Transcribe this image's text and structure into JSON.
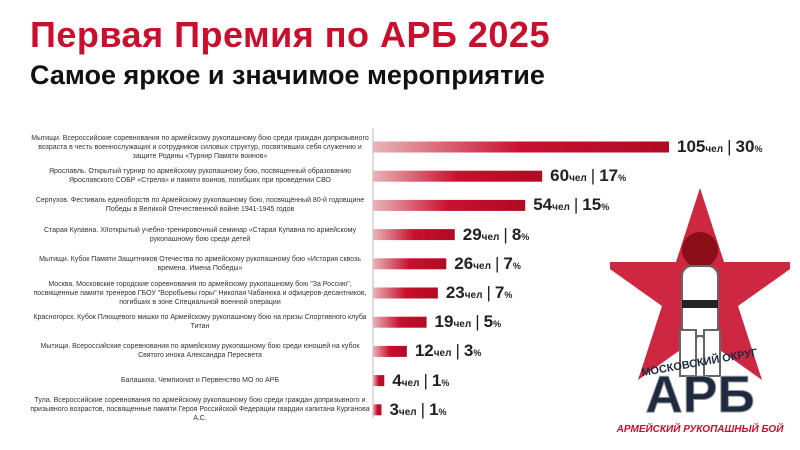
{
  "header": {
    "title": "Первая Премия по АРБ 2025",
    "subtitle": "Самое яркое и значимое мероприятие"
  },
  "chart_data": {
    "type": "bar",
    "orientation": "horizontal",
    "unit_label": "чел",
    "bar_color": "#c8102e",
    "categories": [
      "Мытищи. Всероссийские соревнования по армейскому рукопашному бою среди граждан допризывного возраста в честь военнослужащих и сотрудников силовых структур, посвятивших себя служению и защите Родины «Турнир Памяти воинов»",
      "Ярославль. Открытый турнир по армейскому рукопашному бою, посвященный образованию Ярославского СОБР «Стрела» и памяти воинов, погибших при проведении СВО",
      "Серпухов. Фестиваль единоборств по Армейскому рукопашному бою, посвящённый 80-й годовщине Победы в Великой Отечественной войне 1941-1945 годов",
      "Старая Купавна. XIIоткрытый учебно-тренировочный семинар «Старая Купавна по армейскому рукопашному бою среди детей",
      "Мытищи. Кубок Памяти Защитников Отечества по армейскому рукопашному бою «История сквозь времена. Имена Победы»",
      "Москва. Московские городские соревнования по армейскому рукопашному бою \"За Россию\", посвященные памяти тренеров ГБОУ \"Воробьевы горы\" Николая Чабанюка и офицеров-десантников, погибших в зоне Специальной военной операции",
      "Красногорск. Кубок Плющевого мишки по Армейскому рукопашному бою на призы Спортивного клуба Титан",
      "Мытищи. Всероссийские соревнования по армейскому рукопашному бою среди юношей на кубок Святого инока Александра Пересвета",
      "Балашиха. Чемпионат и Первенство МО по АРБ",
      "Тула. Всероссийские соревнования по армейскому рукопашному бою среди граждан допризывного и призывного возрастов, посвященные памяти Героя Российской Федерации гвардии капитана Курганова А.С."
    ],
    "values": [
      105,
      60,
      54,
      29,
      26,
      23,
      19,
      12,
      4,
      3
    ],
    "percent": [
      "30",
      "17",
      "15",
      "8",
      "7",
      "7",
      "5",
      "3",
      "1",
      "1"
    ],
    "xlim": [
      0,
      105
    ]
  },
  "logo": {
    "line1": "МОСКОВСКИЙ ОКРУГ",
    "line2": "АРБ",
    "line3": "АРМЕЙСКИЙ РУКОПАШНЫЙ БОЙ"
  }
}
